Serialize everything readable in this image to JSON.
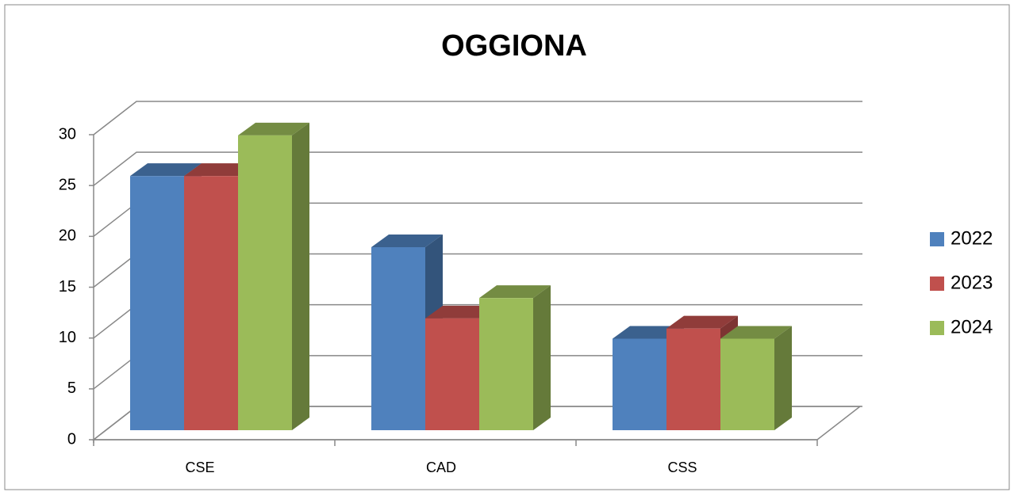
{
  "chart_data": {
    "type": "bar3d",
    "title": "OGGIONA",
    "categories": [
      "CSE",
      "CAD",
      "CSS"
    ],
    "series": [
      {
        "name": "2022",
        "color": "#4f81bd",
        "values": [
          25,
          18,
          9
        ]
      },
      {
        "name": "2023",
        "color": "#c0504d",
        "values": [
          25,
          11,
          10
        ]
      },
      {
        "name": "2024",
        "color": "#9bbb59",
        "values": [
          29,
          13,
          9
        ]
      }
    ],
    "ylim": [
      0,
      30
    ],
    "yticks": [
      0,
      5,
      10,
      15,
      20,
      25,
      30
    ],
    "grid": true,
    "legend": "right"
  }
}
